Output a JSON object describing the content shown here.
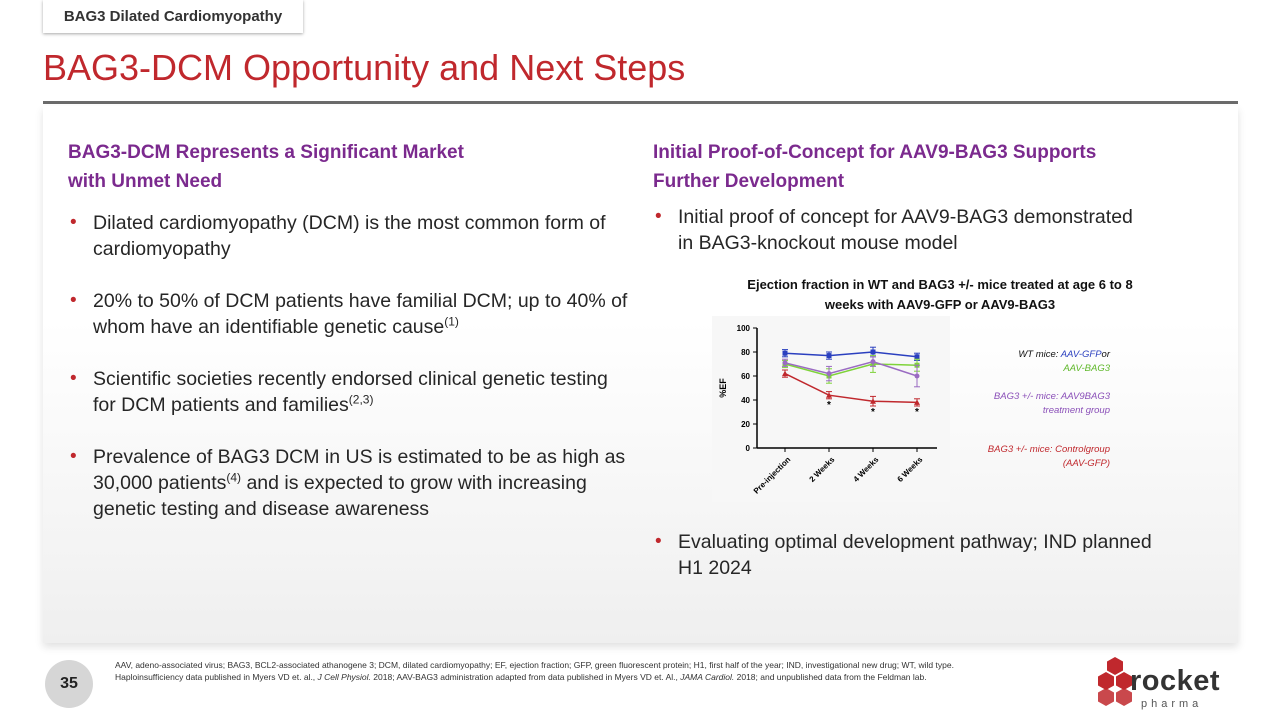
{
  "section_tab": "BAG3 Dilated Cardiomyopathy",
  "title": "BAG3-DCM Opportunity and Next Steps",
  "left": {
    "heading_line1": "BAG3-DCM Represents a Significant Market",
    "heading_line2": "with Unmet Need",
    "bullets": [
      {
        "text": "Dilated cardiomyopathy (DCM) is the most common form of cardiomyopathy",
        "ref": ""
      },
      {
        "text": "20% to 50% of DCM patients have familial DCM; up to 40% of whom have an identifiable genetic cause",
        "ref": "(1)"
      },
      {
        "text": "Scientific societies recently endorsed clinical genetic testing for DCM patients and families",
        "ref": "(2,3)"
      },
      {
        "text_a": "Prevalence of BAG3 DCM in US is estimated to be as high as 30,000 patients",
        "ref": "(4)",
        "text_b": " and is expected to grow with increasing genetic testing and disease awareness"
      }
    ]
  },
  "right": {
    "heading_line1": "Initial Proof-of-Concept for AAV9-BAG3 Supports",
    "heading_line2": "Further Development",
    "bullet1": "Initial proof of concept for AAV9-BAG3 demonstrated in BAG3-knockout mouse model",
    "bullet2": "Evaluating optimal development pathway; IND planned H1 2024"
  },
  "chart_data": {
    "type": "line",
    "title_line1": "Ejection fraction in WT and BAG3 +/- mice treated at age 6 to 8",
    "title_line2": "weeks with AAV9-GFP or AAV9-BAG3",
    "categories": [
      "Pre-injection",
      "2 Weeks",
      "4 Weeks",
      "6 Weeks"
    ],
    "ylabel": "%EF",
    "ylim": [
      0,
      100
    ],
    "yticks": [
      "0",
      "20",
      "40",
      "60",
      "80",
      "100"
    ],
    "series": [
      {
        "name": "WT mice: AAV-GFP",
        "color": "#2a3fbf",
        "values": [
          79,
          77,
          80,
          76
        ]
      },
      {
        "name": "AAV-BAG3",
        "color": "#7fd33a",
        "values": [
          70,
          60,
          70,
          69
        ]
      },
      {
        "name": "BAG3 +/- mice: AAV9BAG3 treatment group",
        "color": "#9a6bc2",
        "values": [
          71,
          62,
          72,
          60
        ]
      },
      {
        "name": "BAG3 +/- mice: Control group (AAV-GFP)",
        "color": "#c0282d",
        "values": [
          62,
          44,
          39,
          38
        ]
      }
    ],
    "errors": [
      [
        3,
        3,
        3,
        3
      ],
      [
        3,
        6,
        6,
        3
      ],
      [
        4,
        7,
        4,
        4
      ],
      [
        3,
        5,
        9,
        3
      ]
    ],
    "significance_marks": [
      "*",
      "*",
      "*"
    ],
    "legend": {
      "wt_prefix": "WT mice: ",
      "wt_gfp": "AAV-GFP",
      "wt_or": "or",
      "wt_bag3": "AAV-BAG3",
      "treat_line1": "BAG3 +/- mice: AAV9BAG3",
      "treat_line2": "treatment group",
      "ctrl_line1": "BAG3 +/- mice: Controlgroup",
      "ctrl_line2": "(AAV-GFP)"
    }
  },
  "footnote_a": "AAV, adeno-associated virus; BAG3, BCL2-associated athanogene 3; DCM, dilated cardiomyopathy; EF, ejection fraction; GFP, green fluorescent protein; H1, first half of the year; IND, investigational new drug; WT, wild type. Haploinsufficiency data published in Myers VD et. al., ",
  "footnote_j1": "J Cell Physiol.",
  "footnote_b": " 2018; AAV-BAG3 administration adapted from data published in Myers VD et. Al., ",
  "footnote_j2": "JAMA Cardiol.",
  "footnote_c": " 2018; and unpublished data from the Feldman lab.",
  "page_number": "35",
  "logo": {
    "name": "rocket",
    "tagline": "pharma",
    "color": "#c0282d"
  }
}
